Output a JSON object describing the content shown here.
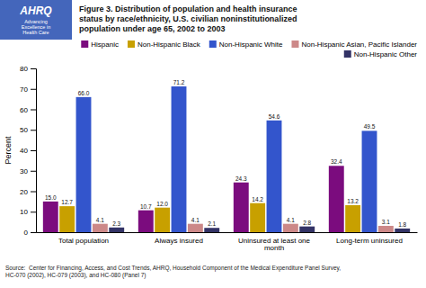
{
  "chart_data": {
    "type": "bar",
    "title": "Figure 3. Distribution of population and health insurance\nstatus by race/ethnicity, U.S. civilian noninstitutionalized\npopulation under age 65, 2002 to 2003",
    "categories": [
      "Total population",
      "Always insured",
      "Uninsured at least one month",
      "Long-term uninsured"
    ],
    "series": [
      {
        "name": "Hispanic",
        "color": "#7B0C7E",
        "values": [
          15.0,
          10.7,
          24.3,
          32.4
        ],
        "value_labels": [
          "15.0",
          "10.7",
          "24.3",
          "32.4"
        ]
      },
      {
        "name": "Non-Hispanic Black",
        "color": "#C8A000",
        "values": [
          12.7,
          12.0,
          14.2,
          13.2
        ],
        "value_labels": [
          "12.7",
          "12.0",
          "14.2",
          "13.2"
        ]
      },
      {
        "name": "Non-Hispanic White",
        "color": "#3355CC",
        "values": [
          66.0,
          71.2,
          54.6,
          49.5
        ],
        "value_labels": [
          "66.0",
          "71.2",
          "54.6",
          "49.5"
        ]
      },
      {
        "name": "Non-Hispanic Asian, Pacific Islander",
        "color": "#CC8888",
        "values": [
          4.1,
          4.1,
          4.1,
          3.1
        ],
        "value_labels": [
          "4.1",
          "4.1",
          "4.1",
          "3.1"
        ]
      },
      {
        "name": "Non-Hispanic Other",
        "color": "#333366",
        "values": [
          2.3,
          2.1,
          2.8,
          1.8
        ],
        "value_labels": [
          "2.3",
          "2.1",
          "2.8",
          "1.8"
        ]
      }
    ],
    "ylabel": "Percent",
    "ylim": [
      0,
      80
    ],
    "yticks": [
      0,
      10,
      20,
      30,
      40,
      50,
      60,
      70,
      80
    ],
    "grid": false,
    "legend": "upper right",
    "data_labels": true,
    "annotations": [
      "AHRQ",
      "Advancing\nExcellence in\nHealth Care",
      "Source:  Center for Financing, Access, and Cost Trends, AHRQ, Household Component of the Medical Expenditure Panel Survey,\nHC-070 (2002), HC-079 (2003), and HC-080 (Panel 7)"
    ]
  }
}
